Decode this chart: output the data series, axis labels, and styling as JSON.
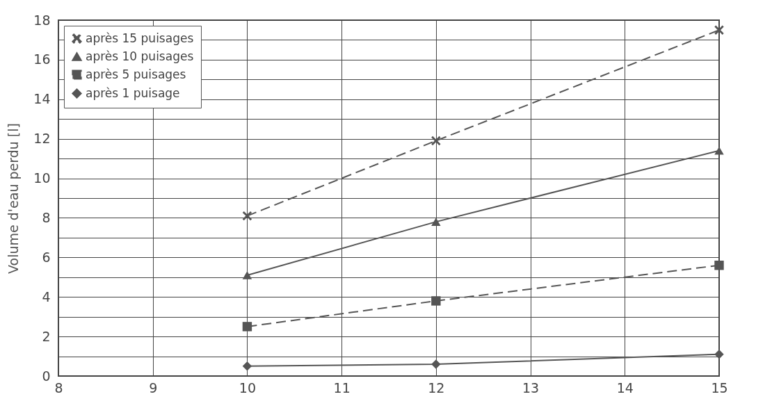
{
  "chart_data": {
    "type": "line",
    "ylabel": "Volume d'eau perdu [l]",
    "xlim": [
      8,
      15
    ],
    "xticks": [
      8,
      9,
      10,
      11,
      12,
      13,
      14,
      15
    ],
    "ylim": [
      0,
      18
    ],
    "yticks": [
      0,
      {
        "value": 1,
        "label": null
      },
      2,
      {
        "value": 3,
        "label": null
      },
      4,
      {
        "value": 5,
        "label": null
      },
      6,
      {
        "value": 7,
        "label": null
      },
      8,
      {
        "value": 9,
        "label": null
      },
      10,
      {
        "value": 11,
        "label": null
      },
      12,
      {
        "value": 13,
        "label": null
      },
      14,
      {
        "value": 15,
        "label": null
      },
      16,
      {
        "value": 17,
        "label": null
      },
      18
    ],
    "grid": true,
    "legend": "top left",
    "series": [
      {
        "name": "après 15 puisages",
        "color": "#555555",
        "marker": "cross",
        "line_style": "dashed",
        "x": [
          10,
          12,
          15
        ],
        "values": [
          8.1,
          11.9,
          17.5
        ]
      },
      {
        "name": "après 10 puisages",
        "color": "#555555",
        "marker": "triangle",
        "line_style": "solid",
        "x": [
          10,
          12,
          15
        ],
        "values": [
          5.1,
          7.8,
          11.4
        ]
      },
      {
        "name": "après 5 puisages",
        "color": "#555555",
        "marker": "square",
        "line_style": "dashed",
        "x": [
          10,
          12,
          15
        ],
        "values": [
          2.5,
          3.8,
          5.6
        ]
      },
      {
        "name": "après 1 puisage",
        "color": "#555555",
        "marker": "diamond",
        "line_style": "solid",
        "x": [
          10,
          12,
          15
        ],
        "values": [
          0.5,
          0.6,
          1.1
        ]
      }
    ]
  }
}
